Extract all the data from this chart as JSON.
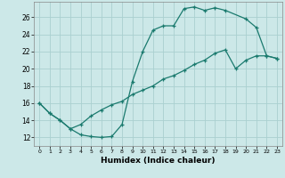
{
  "xlabel": "Humidex (Indice chaleur)",
  "yticks": [
    12,
    14,
    16,
    18,
    20,
    22,
    24,
    26
  ],
  "xticks": [
    0,
    1,
    2,
    3,
    4,
    5,
    6,
    7,
    8,
    9,
    10,
    11,
    12,
    13,
    14,
    15,
    16,
    17,
    18,
    19,
    20,
    21,
    22,
    23
  ],
  "line_color": "#1a7a6e",
  "bg_color": "#cce8e8",
  "grid_color": "#aad0d0",
  "line1_x": [
    0,
    1,
    2,
    3,
    4,
    5,
    6,
    7,
    8,
    9,
    10,
    11,
    12,
    13,
    14,
    15,
    16,
    17,
    18,
    20,
    21,
    22,
    23
  ],
  "line1_y": [
    16,
    14.8,
    14.0,
    13.0,
    12.3,
    12.1,
    12.0,
    12.1,
    13.5,
    18.5,
    22.0,
    24.5,
    25.0,
    25.0,
    27.0,
    27.2,
    26.8,
    27.1,
    26.8,
    25.8,
    24.8,
    21.5,
    21.2
  ],
  "line2_x": [
    0,
    1,
    2,
    3,
    4,
    5,
    6,
    7,
    8,
    9,
    10,
    11,
    12,
    13,
    14,
    15,
    16,
    17,
    18,
    19,
    20,
    21,
    22,
    23
  ],
  "line2_y": [
    16,
    14.8,
    14.0,
    13.0,
    13.5,
    14.5,
    15.2,
    15.8,
    16.2,
    17.0,
    17.5,
    18.0,
    18.8,
    19.2,
    19.8,
    20.5,
    21.0,
    21.8,
    22.2,
    20.0,
    21.0,
    21.5,
    21.5,
    21.2
  ]
}
